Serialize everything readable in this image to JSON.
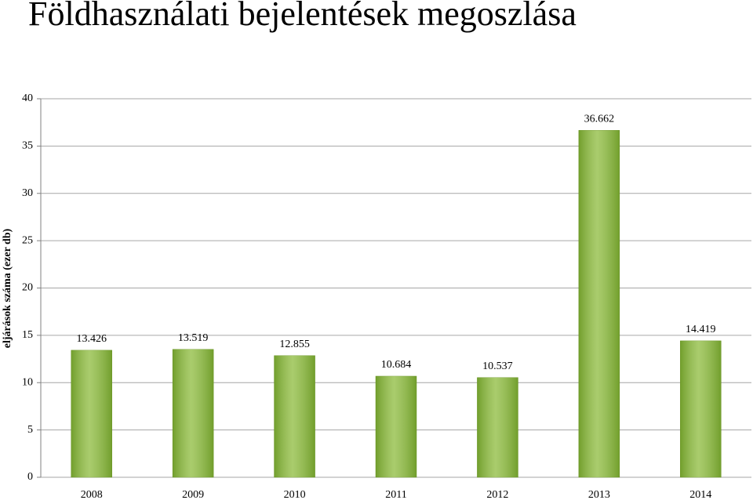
{
  "chart_data": {
    "type": "bar",
    "title": "Földhasználati bejelentések megoszlása",
    "y_axis_label": "eljárások száma (ezer db)",
    "categories": [
      "2008",
      "2009",
      "2010",
      "2011",
      "2012",
      "2013",
      "2014"
    ],
    "values": [
      13.426,
      13.519,
      12.855,
      10.684,
      10.537,
      36.662,
      14.419
    ],
    "color": "#8dbb3c",
    "ylim": [
      0,
      40
    ],
    "yticks": [
      0,
      5,
      10,
      15,
      20,
      25,
      30,
      35,
      40
    ],
    "grid": true
  }
}
